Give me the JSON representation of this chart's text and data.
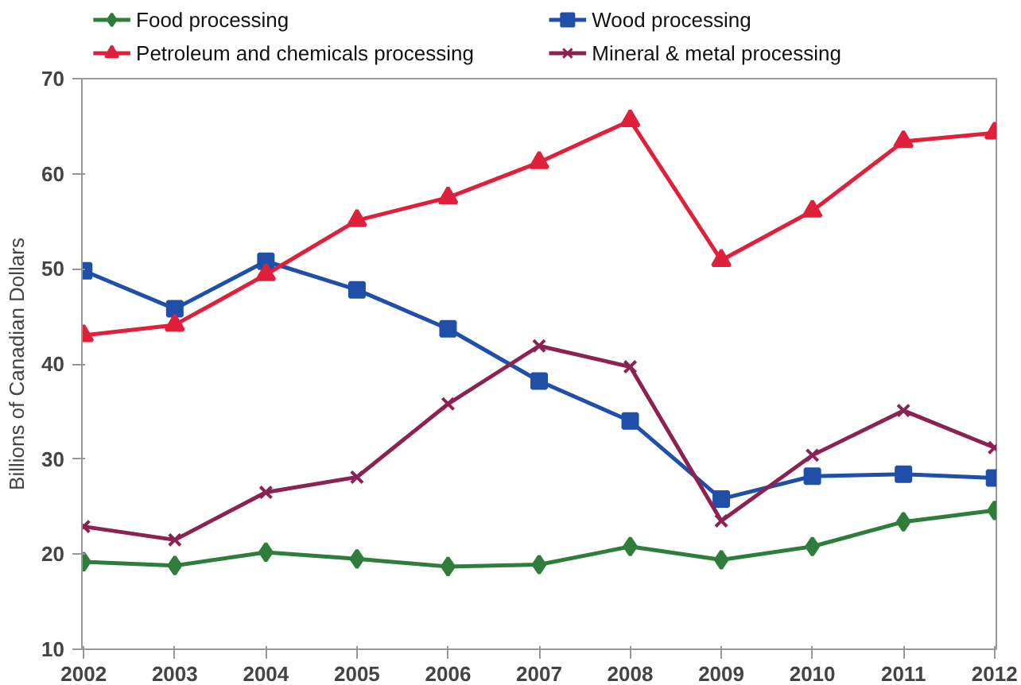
{
  "chart_data": {
    "type": "line",
    "ylabel": "Billions of Canadian Dollars",
    "categories": [
      "2002",
      "2003",
      "2004",
      "2005",
      "2006",
      "2007",
      "2008",
      "2009",
      "2010",
      "2011",
      "2012"
    ],
    "ylim": [
      10,
      70
    ],
    "yticks": [
      10,
      20,
      30,
      40,
      50,
      60,
      70
    ],
    "grid": false,
    "legend": "top",
    "series": [
      {
        "name": "Food processing",
        "color": "#2e7d3a",
        "marker": "diamond",
        "values": [
          19.2,
          18.8,
          20.2,
          19.5,
          18.7,
          18.9,
          20.8,
          19.4,
          20.8,
          23.4,
          24.6
        ]
      },
      {
        "name": "Wood processing",
        "color": "#1f4fa8",
        "marker": "square",
        "values": [
          49.8,
          45.8,
          50.8,
          47.8,
          43.7,
          38.2,
          34.0,
          25.8,
          28.2,
          28.4,
          28.0
        ]
      },
      {
        "name": "Petroleum and chemicals processing",
        "color": "#e0203a",
        "marker": "triangle",
        "values": [
          43.0,
          44.1,
          49.4,
          55.1,
          57.5,
          61.2,
          65.6,
          50.9,
          56.1,
          63.4,
          64.3
        ]
      },
      {
        "name": "Mineral & metal processing",
        "color": "#8b2252",
        "marker": "cross",
        "values": [
          22.9,
          21.5,
          26.5,
          28.1,
          35.8,
          41.9,
          39.7,
          23.5,
          30.4,
          35.1,
          31.2
        ]
      }
    ]
  }
}
